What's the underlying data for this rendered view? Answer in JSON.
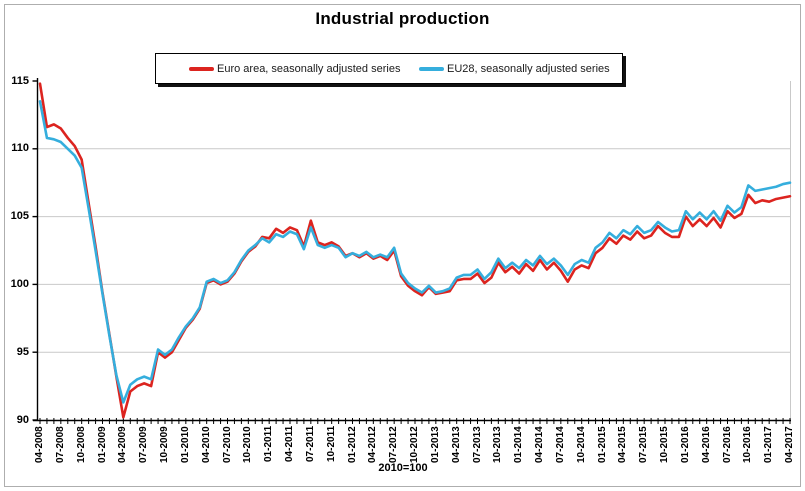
{
  "title": "Industrial production",
  "footnote": "2010=100",
  "legend": {
    "items": [
      {
        "label": "Euro area, seasonally adjusted series",
        "color": "#dc241f"
      },
      {
        "label": "EU28, seasonally adjusted series",
        "color": "#35aedd"
      }
    ]
  },
  "colors": {
    "euro_area_line": "#dc241f",
    "eu28_line": "#35aedd",
    "gridline": "#c9c9c9",
    "axis": "#000000",
    "frame_border": "#aeaeae",
    "legend_shadow": "#111111"
  },
  "chart_data": {
    "type": "line",
    "title": "Industrial production",
    "subtitle": "2010=100",
    "x_unit": "month",
    "x_start": "04-2008",
    "x_end": "04-2017",
    "n_points": 109,
    "months_per_labeled_tick": 3,
    "x_tick_labels": [
      "04-2008",
      "07-2008",
      "10-2008",
      "01-2009",
      "04-2009",
      "07-2009",
      "10-2009",
      "01-2010",
      "04-2010",
      "07-2010",
      "10-2010",
      "01-2011",
      "04-2011",
      "07-2011",
      "10-2011",
      "01-2012",
      "04-2012",
      "07-2012",
      "10-2012",
      "01-2013",
      "04-2013",
      "07-2013",
      "10-2013",
      "01-2014",
      "04-2014",
      "07-2014",
      "10-2014",
      "01-2015",
      "04-2015",
      "07-2015",
      "10-2015",
      "01-2016",
      "04-2016",
      "07-2016",
      "10-2016",
      "01-2017",
      "04-2017"
    ],
    "y_ticks": [
      90,
      95,
      100,
      105,
      110,
      115
    ],
    "ylim": [
      90,
      115.4
    ],
    "grid": "horizontal-only",
    "legend_position": "top",
    "series": [
      {
        "name": "Euro area, seasonally adjusted series",
        "color": "#dc241f",
        "values": [
          114.8,
          111.6,
          111.8,
          111.5,
          110.8,
          110.2,
          109.2,
          106.0,
          102.8,
          99.4,
          96.3,
          93.2,
          90.2,
          92.1,
          92.5,
          92.7,
          92.5,
          95.0,
          94.6,
          95.0,
          95.9,
          96.8,
          97.4,
          98.2,
          100.1,
          100.3,
          100.0,
          100.2,
          100.8,
          101.7,
          102.4,
          102.8,
          103.5,
          103.4,
          104.1,
          103.8,
          104.2,
          104.0,
          102.8,
          104.7,
          103.1,
          102.9,
          103.1,
          102.8,
          102.1,
          102.3,
          102.0,
          102.3,
          101.9,
          102.1,
          101.8,
          102.5,
          100.6,
          99.9,
          99.5,
          99.2,
          99.8,
          99.3,
          99.4,
          99.5,
          100.3,
          100.4,
          100.4,
          100.8,
          100.1,
          100.5,
          101.6,
          100.9,
          101.3,
          100.8,
          101.5,
          101.0,
          101.8,
          101.1,
          101.6,
          101.0,
          100.2,
          101.1,
          101.4,
          101.2,
          102.3,
          102.7,
          103.4,
          103.0,
          103.6,
          103.3,
          103.9,
          103.4,
          103.6,
          104.3,
          103.8,
          103.5,
          103.5,
          105.0,
          104.3,
          104.8,
          104.3,
          104.9,
          104.2,
          105.4,
          104.9,
          105.2,
          106.6,
          106.0,
          106.2,
          106.1,
          106.3,
          106.4,
          106.5
        ]
      },
      {
        "name": "EU28, seasonally adjusted series",
        "color": "#35aedd",
        "values": [
          113.5,
          110.8,
          110.7,
          110.5,
          110.0,
          109.5,
          108.6,
          105.6,
          102.5,
          99.3,
          96.2,
          93.3,
          91.3,
          92.6,
          93.0,
          93.2,
          93.0,
          95.2,
          94.8,
          95.2,
          96.1,
          96.9,
          97.5,
          98.3,
          100.2,
          100.4,
          100.1,
          100.3,
          100.9,
          101.8,
          102.5,
          102.9,
          103.4,
          103.1,
          103.7,
          103.5,
          103.9,
          103.7,
          102.6,
          104.2,
          102.9,
          102.7,
          102.9,
          102.7,
          102.0,
          102.3,
          102.1,
          102.4,
          102.0,
          102.2,
          102.0,
          102.7,
          100.8,
          100.1,
          99.7,
          99.4,
          99.9,
          99.4,
          99.5,
          99.7,
          100.5,
          100.7,
          100.7,
          101.1,
          100.4,
          100.9,
          101.9,
          101.2,
          101.6,
          101.2,
          101.8,
          101.4,
          102.1,
          101.5,
          101.9,
          101.4,
          100.7,
          101.5,
          101.8,
          101.6,
          102.7,
          103.1,
          103.8,
          103.4,
          104.0,
          103.7,
          104.3,
          103.8,
          104.0,
          104.6,
          104.2,
          103.9,
          104.0,
          105.4,
          104.8,
          105.3,
          104.8,
          105.4,
          104.7,
          105.8,
          105.3,
          105.7,
          107.3,
          106.9,
          107.0,
          107.1,
          107.2,
          107.4,
          107.5
        ]
      }
    ]
  }
}
